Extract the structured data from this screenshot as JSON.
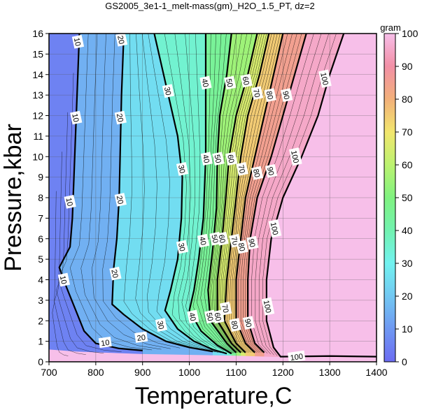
{
  "title": "GS2005_3e1-1_melt-mass(gm)_H2O_1.5_PT, dz=2",
  "chart_data": {
    "type": "heatmap",
    "title": "GS2005_3e1-1_melt-mass(gm)_H2O_1.5_PT, dz=2",
    "xlabel": "Temperature,C",
    "ylabel": "Pressure,kbar",
    "xlim": [
      700,
      1400
    ],
    "ylim": [
      0,
      16
    ],
    "x_ticks": [
      700,
      800,
      900,
      1000,
      1100,
      1200,
      1300,
      1400
    ],
    "y_ticks": [
      0,
      1,
      2,
      3,
      4,
      5,
      6,
      7,
      8,
      9,
      10,
      11,
      12,
      13,
      14,
      15,
      16
    ],
    "grid": true,
    "colorbar": {
      "label": "gram",
      "range": [
        0,
        100
      ],
      "ticks": [
        0,
        10,
        20,
        30,
        40,
        50,
        60,
        70,
        80,
        90,
        100
      ]
    },
    "contour_step": 2,
    "labeled_contours": [
      {
        "level": 10,
        "label": "10",
        "points": [
          [
            765,
            16
          ],
          [
            760,
            13
          ],
          [
            755,
            10
          ],
          [
            750,
            7
          ],
          [
            745,
            5.6
          ],
          [
            722,
            4.6
          ],
          [
            738,
            3.6
          ],
          [
            775,
            1.5
          ],
          [
            800,
            0.9
          ],
          [
            850,
            0.65
          ],
          [
            900,
            0.55
          ]
        ],
        "labels": [
          [
            762,
            15.6
          ],
          [
            758,
            11.9
          ],
          [
            745,
            7.8
          ],
          [
            732,
            4.0
          ],
          [
            820,
            0.95
          ]
        ]
      },
      {
        "level": 20,
        "label": "20",
        "points": [
          [
            860,
            16
          ],
          [
            855,
            13
          ],
          [
            852,
            10
          ],
          [
            850,
            8
          ],
          [
            845,
            6
          ],
          [
            838,
            4.5
          ],
          [
            835,
            2.8
          ],
          [
            860,
            2.3
          ],
          [
            900,
            1.6
          ],
          [
            950,
            1.0
          ],
          [
            1000,
            0.7
          ],
          [
            1050,
            0.5
          ]
        ],
        "labels": [
          [
            855,
            15.7
          ],
          [
            853,
            11.9
          ],
          [
            853,
            7.9
          ],
          [
            842,
            4.3
          ],
          [
            897,
            1.2
          ]
        ]
      },
      {
        "level": 30,
        "label": "30",
        "points": [
          [
            925,
            16
          ],
          [
            950,
            13.5
          ],
          [
            975,
            11
          ],
          [
            985,
            9
          ],
          [
            983,
            7
          ],
          [
            975,
            5
          ],
          [
            960,
            3.5
          ],
          [
            948,
            2.5
          ],
          [
            975,
            1.6
          ],
          [
            1010,
            1.0
          ],
          [
            1050,
            0.6
          ],
          [
            1080,
            0.4
          ]
        ],
        "labels": [
          [
            955,
            13.2
          ],
          [
            985,
            9.4
          ],
          [
            985,
            5.6
          ],
          [
            940,
            1.8
          ]
        ]
      },
      {
        "level": 40,
        "label": "40",
        "points": [
          [
            1035,
            16
          ],
          [
            1035,
            13
          ],
          [
            1035,
            10
          ],
          [
            1030,
            7
          ],
          [
            1020,
            5
          ],
          [
            1010,
            3.5
          ],
          [
            1000,
            2.5
          ],
          [
            1025,
            1.5
          ],
          [
            1060,
            0.8
          ],
          [
            1090,
            0.4
          ]
        ],
        "labels": [
          [
            1035,
            13.6
          ],
          [
            1037,
            9.9
          ],
          [
            1030,
            5.9
          ],
          [
            1008,
            2.2
          ]
        ]
      },
      {
        "level": 50,
        "label": "50",
        "points": [
          [
            1090,
            16
          ],
          [
            1080,
            14
          ],
          [
            1065,
            12
          ],
          [
            1060,
            10
          ],
          [
            1058,
            7.5
          ],
          [
            1050,
            5.5
          ],
          [
            1040,
            3.5
          ],
          [
            1045,
            2.0
          ],
          [
            1080,
            0.9
          ],
          [
            1100,
            0.45
          ]
        ],
        "labels": [
          [
            1087,
            13.6
          ],
          [
            1062,
            9.9
          ],
          [
            1056,
            6.0
          ],
          [
            1045,
            2.2
          ]
        ]
      },
      {
        "level": 60,
        "label": "60",
        "points": [
          [
            1145,
            16
          ],
          [
            1125,
            14
          ],
          [
            1100,
            12
          ],
          [
            1085,
            10
          ],
          [
            1078,
            8
          ],
          [
            1070,
            6
          ],
          [
            1060,
            4
          ],
          [
            1060,
            2
          ],
          [
            1090,
            0.9
          ],
          [
            1110,
            0.45
          ]
        ],
        "labels": [
          [
            1122,
            13.7
          ],
          [
            1090,
            9.9
          ],
          [
            1071,
            6.0
          ],
          [
            1062,
            2.2
          ]
        ]
      },
      {
        "level": 70,
        "label": "70",
        "points": [
          [
            1170,
            16
          ],
          [
            1150,
            14
          ],
          [
            1125,
            12
          ],
          [
            1110,
            10
          ],
          [
            1100,
            8
          ],
          [
            1090,
            6
          ],
          [
            1080,
            4
          ],
          [
            1075,
            2
          ],
          [
            1100,
            0.9
          ],
          [
            1120,
            0.45
          ]
        ],
        "labels": [
          [
            1145,
            13.1
          ],
          [
            1113,
            9.4
          ],
          [
            1098,
            5.9
          ],
          [
            1078,
            2.6
          ]
        ]
      },
      {
        "level": 80,
        "label": "80",
        "points": [
          [
            1200,
            16
          ],
          [
            1180,
            14
          ],
          [
            1160,
            12
          ],
          [
            1140,
            10
          ],
          [
            1120,
            8
          ],
          [
            1110,
            6
          ],
          [
            1100,
            4
          ],
          [
            1100,
            2
          ],
          [
            1120,
            0.9
          ],
          [
            1140,
            0.45
          ]
        ],
        "labels": [
          [
            1173,
            13.0
          ],
          [
            1145,
            9.2
          ],
          [
            1113,
            5.6
          ],
          [
            1098,
            1.8
          ]
        ]
      },
      {
        "level": 90,
        "label": "90",
        "points": [
          [
            1250,
            16
          ],
          [
            1225,
            14
          ],
          [
            1200,
            12
          ],
          [
            1175,
            10
          ],
          [
            1145,
            8
          ],
          [
            1130,
            6
          ],
          [
            1125,
            4
          ],
          [
            1125,
            2
          ],
          [
            1140,
            0.9
          ],
          [
            1160,
            0.45
          ]
        ],
        "labels": [
          [
            1208,
            13.0
          ],
          [
            1175,
            9.3
          ],
          [
            1135,
            5.8
          ],
          [
            1127,
            1.9
          ]
        ]
      },
      {
        "level": 100,
        "label": "100",
        "points": [
          [
            1330,
            16
          ],
          [
            1300,
            14
          ],
          [
            1275,
            12
          ],
          [
            1240,
            10
          ],
          [
            1200,
            8
          ],
          [
            1175,
            6
          ],
          [
            1165,
            4
          ],
          [
            1165,
            2
          ],
          [
            1180,
            0.7
          ],
          [
            1195,
            0.25
          ],
          [
            1300,
            0.28
          ],
          [
            1400,
            0.25
          ]
        ],
        "labels": [
          [
            1290,
            13.8
          ],
          [
            1227,
            10.0
          ],
          [
            1183,
            6.5
          ],
          [
            1168,
            2.7
          ],
          [
            1229,
            0.26
          ]
        ]
      }
    ]
  }
}
